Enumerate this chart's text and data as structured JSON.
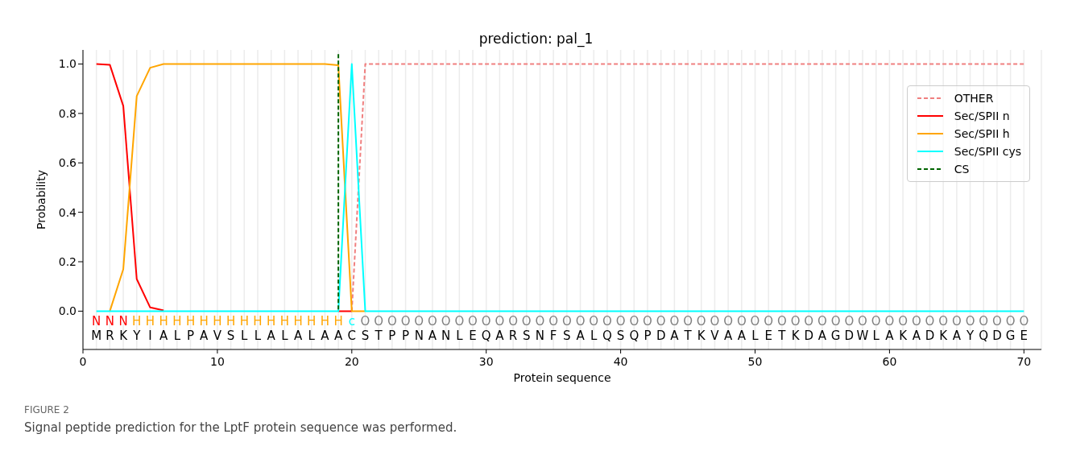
{
  "chart_data": {
    "type": "line",
    "title": "prediction: pal_1",
    "xlabel": "Protein sequence",
    "ylabel": "Probability",
    "xlim": [
      0,
      71.3
    ],
    "ylim": [
      -0.155,
      1.057
    ],
    "xticks": [
      0,
      {
        "value": 1,
        "label": null
      },
      {
        "value": 2,
        "label": null
      },
      {
        "value": 3,
        "label": null
      },
      {
        "value": 4,
        "label": null
      },
      {
        "value": 5,
        "label": null
      },
      {
        "value": 6,
        "label": null
      },
      {
        "value": 7,
        "label": null
      },
      {
        "value": 8,
        "label": null
      },
      {
        "value": 9,
        "label": null
      },
      10,
      {
        "value": 11,
        "label": null
      },
      {
        "value": 12,
        "label": null
      },
      {
        "value": 13,
        "label": null
      },
      {
        "value": 14,
        "label": null
      },
      {
        "value": 15,
        "label": null
      },
      {
        "value": 16,
        "label": null
      },
      {
        "value": 17,
        "label": null
      },
      {
        "value": 18,
        "label": null
      },
      {
        "value": 19,
        "label": null
      },
      20,
      {
        "value": 21,
        "label": null
      },
      {
        "value": 22,
        "label": null
      },
      {
        "value": 23,
        "label": null
      },
      {
        "value": 24,
        "label": null
      },
      {
        "value": 25,
        "label": null
      },
      {
        "value": 26,
        "label": null
      },
      {
        "value": 27,
        "label": null
      },
      {
        "value": 28,
        "label": null
      },
      {
        "value": 29,
        "label": null
      },
      30,
      {
        "value": 31,
        "label": null
      },
      {
        "value": 32,
        "label": null
      },
      {
        "value": 33,
        "label": null
      },
      {
        "value": 34,
        "label": null
      },
      {
        "value": 35,
        "label": null
      },
      {
        "value": 36,
        "label": null
      },
      {
        "value": 37,
        "label": null
      },
      {
        "value": 38,
        "label": null
      },
      {
        "value": 39,
        "label": null
      },
      40,
      {
        "value": 41,
        "label": null
      },
      {
        "value": 42,
        "label": null
      },
      {
        "value": 43,
        "label": null
      },
      {
        "value": 44,
        "label": null
      },
      {
        "value": 45,
        "label": null
      },
      {
        "value": 46,
        "label": null
      },
      {
        "value": 47,
        "label": null
      },
      {
        "value": 48,
        "label": null
      },
      {
        "value": 49,
        "label": null
      },
      50,
      {
        "value": 51,
        "label": null
      },
      {
        "value": 52,
        "label": null
      },
      {
        "value": 53,
        "label": null
      },
      {
        "value": 54,
        "label": null
      },
      {
        "value": 55,
        "label": null
      },
      {
        "value": 56,
        "label": null
      },
      {
        "value": 57,
        "label": null
      },
      {
        "value": 58,
        "label": null
      },
      {
        "value": 59,
        "label": null
      },
      60,
      {
        "value": 61,
        "label": null
      },
      {
        "value": 62,
        "label": null
      },
      {
        "value": 63,
        "label": null
      },
      {
        "value": 64,
        "label": null
      },
      {
        "value": 65,
        "label": null
      },
      {
        "value": 66,
        "label": null
      },
      {
        "value": 67,
        "label": null
      },
      {
        "value": 68,
        "label": null
      },
      {
        "value": 69,
        "label": null
      },
      70
    ],
    "yticks": [
      {
        "value": 0,
        "label": "0.0"
      },
      0.2,
      0.4,
      0.6,
      0.8,
      {
        "value": 1,
        "label": "1.0"
      }
    ],
    "grid": "x",
    "legend": "top right",
    "x": [
      1,
      2,
      3,
      4,
      5,
      6,
      7,
      8,
      9,
      10,
      11,
      12,
      13,
      14,
      15,
      16,
      17,
      18,
      19,
      20,
      21,
      22,
      23,
      24,
      25,
      26,
      27,
      28,
      29,
      30,
      31,
      32,
      33,
      34,
      35,
      36,
      37,
      38,
      39,
      40,
      41,
      42,
      43,
      44,
      45,
      46,
      47,
      48,
      49,
      50,
      51,
      52,
      53,
      54,
      55,
      56,
      57,
      58,
      59,
      60,
      61,
      62,
      63,
      64,
      65,
      66,
      67,
      68,
      69,
      70
    ],
    "series": [
      {
        "name": "OTHER",
        "color": "#f08080",
        "line_style": "dashed",
        "values": [
          null,
          null,
          null,
          null,
          null,
          null,
          null,
          null,
          null,
          null,
          null,
          null,
          null,
          null,
          null,
          null,
          null,
          null,
          null,
          0,
          1,
          1,
          1,
          1,
          1,
          1,
          1,
          1,
          1,
          1,
          1,
          1,
          1,
          1,
          1,
          1,
          1,
          1,
          1,
          1,
          1,
          1,
          1,
          1,
          1,
          1,
          1,
          1,
          1,
          1,
          1,
          1,
          1,
          1,
          1,
          1,
          1,
          1,
          1,
          1,
          1,
          1,
          1,
          1,
          1,
          1,
          1,
          1,
          1,
          1
        ]
      },
      {
        "name": "Sec/SPII n",
        "color": "#ff0000",
        "line_style": "solid",
        "values": [
          1,
          0.997,
          0.83,
          0.13,
          0.015,
          0.003,
          null,
          null,
          null,
          null,
          null,
          null,
          null,
          null,
          null,
          null,
          null,
          null,
          0,
          0,
          null,
          null,
          null,
          null,
          null,
          null,
          null,
          null,
          null,
          null,
          null,
          null,
          null,
          null,
          null,
          null,
          null,
          null,
          null,
          null,
          null,
          null,
          null,
          null,
          null,
          null,
          null,
          null,
          null,
          null,
          null,
          null,
          null,
          null,
          null,
          null,
          null,
          null,
          null,
          null,
          null,
          null,
          null,
          null,
          null,
          null,
          null,
          null,
          null,
          null
        ]
      },
      {
        "name": "Sec/SPII h",
        "color": "#ffa500",
        "line_style": "solid",
        "values": [
          null,
          0,
          0.17,
          0.87,
          0.985,
          1,
          1,
          1,
          1,
          1,
          1,
          1,
          1,
          1,
          1,
          1,
          1,
          1,
          0.995,
          0,
          0,
          null,
          null,
          null,
          null,
          null,
          null,
          null,
          null,
          null,
          null,
          null,
          null,
          null,
          null,
          null,
          null,
          null,
          null,
          null,
          null,
          null,
          null,
          null,
          null,
          null,
          null,
          null,
          null,
          null,
          null,
          null,
          null,
          null,
          null,
          null,
          null,
          null,
          null,
          null,
          null,
          null,
          null,
          null,
          null,
          null,
          null,
          null,
          null,
          null
        ]
      },
      {
        "name": "Sec/SPII cys",
        "color": "#00ffff",
        "line_style": "solid",
        "values": [
          0,
          0,
          0,
          0,
          0,
          0,
          0,
          0,
          0,
          0,
          0,
          0,
          0,
          0,
          0,
          0,
          0,
          0,
          0,
          1,
          0,
          0,
          0,
          0,
          0,
          0,
          0,
          0,
          0,
          0,
          0,
          0,
          0,
          0,
          0,
          0,
          0,
          0,
          0,
          0,
          0,
          0,
          0,
          0,
          0,
          0,
          0,
          0,
          0,
          0,
          0,
          0,
          0,
          0,
          0,
          0,
          0,
          0,
          0,
          0,
          0,
          0,
          0,
          0,
          0,
          0,
          0,
          0,
          0,
          0
        ]
      },
      {
        "name": "CS",
        "color": "#006400",
        "line_style": "dashed",
        "x": [
          19,
          19
        ],
        "values": [
          1.04,
          0
        ]
      }
    ],
    "annotations": [
      "FIGURE 2",
      "Signal peptide prediction for the LptF protein sequence was performed.",
      "N N N H H H H H H H H H H H H H H H H c O O O O O O O O O O O O O O O O O O O O O O O O O O O O O O O O O O O O O O O O O O O O O O O O O O",
      "M R K Y I A L P A V S L L A L A L A A C S T P P N A N L E Q A R S N F S A L Q S Q P D A T K V A A L E T K D A G D W L A K A D K A Y Q D G E"
    ]
  }
}
